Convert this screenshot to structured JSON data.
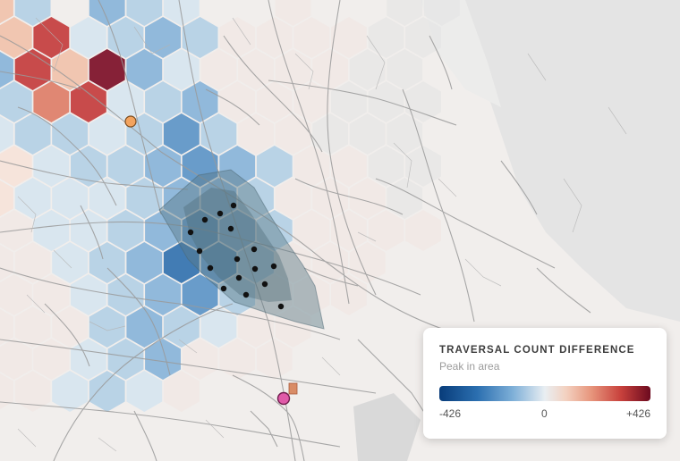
{
  "legend": {
    "title": "TRAVERSAL COUNT DIFFERENCE",
    "subtitle": "Peak in area",
    "min_label": "-426",
    "mid_label": "0",
    "max_label": "+426",
    "scale_min": -426,
    "scale_max": 426,
    "colors": {
      "negative_extreme": "#083c7a",
      "neutral": "#e9eef2",
      "positive_extreme": "#6c0a1f"
    }
  },
  "map": {
    "marker_orange_color": "#f3a35e",
    "marker_pink_color": "#e05aa8",
    "focus_area_color": "#5b7b88",
    "station_points_count": 16
  }
}
